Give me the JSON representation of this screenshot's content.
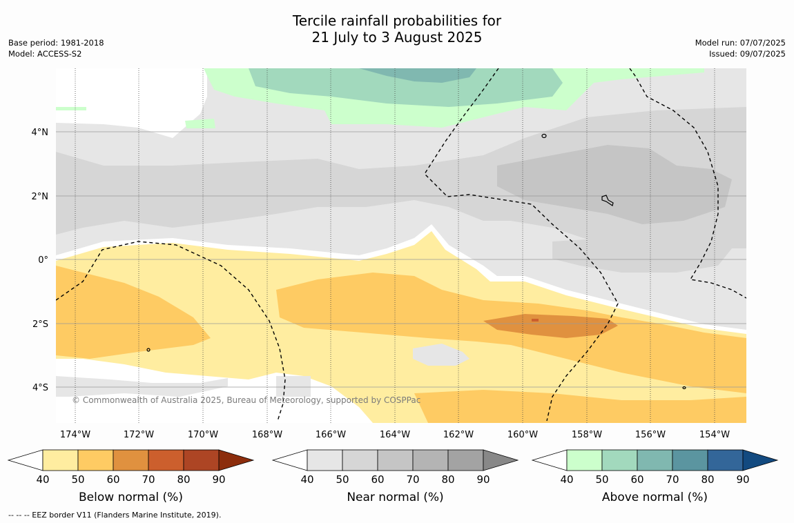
{
  "header": {
    "title_line1": "Tercile rainfall probabilities for",
    "title_line2": "21 July to 3 August 2025",
    "base_period": "Base period: 1981-2018",
    "model": "Model: ACCESS-S2",
    "model_run": "Model run: 07/07/2025",
    "issued": "Issued: 09/07/2025"
  },
  "map": {
    "copyright": "© Commonwealth of Australia 2025, Bureau of Meteorology, supported by COSPPac",
    "lat_ticks": [
      "4°N",
      "2°N",
      "0°",
      "2°S",
      "4°S"
    ],
    "lon_ticks": [
      "174°W",
      "172°W",
      "170°W",
      "168°W",
      "166°W",
      "164°W",
      "162°W",
      "160°W",
      "158°W",
      "156°W",
      "154°W"
    ]
  },
  "colorbars": [
    {
      "label": "Below normal (%)",
      "ticks": [
        "40",
        "50",
        "60",
        "70",
        "80",
        "90"
      ],
      "colors": [
        "#ffffff",
        "#ffeda0",
        "#fecb63",
        "#e0913f",
        "#cc5f2d",
        "#ad4524",
        "#8c2d0c"
      ]
    },
    {
      "label": "Near normal (%)",
      "ticks": [
        "40",
        "50",
        "60",
        "70",
        "80",
        "90"
      ],
      "colors": [
        "#ffffff",
        "#e6e6e6",
        "#d6d6d6",
        "#c5c5c5",
        "#b4b4b4",
        "#a3a3a3",
        "#888888"
      ]
    },
    {
      "label": "Above normal (%)",
      "ticks": [
        "40",
        "50",
        "60",
        "70",
        "80",
        "90"
      ],
      "colors": [
        "#ffffff",
        "#ccffcc",
        "#a2d9bd",
        "#80b8b0",
        "#5b95a0",
        "#336699",
        "#134a80"
      ]
    }
  ],
  "footer": {
    "eez_note": "--  --  -- EEZ border V11 (Flanders Marine Institute, 2019)."
  }
}
